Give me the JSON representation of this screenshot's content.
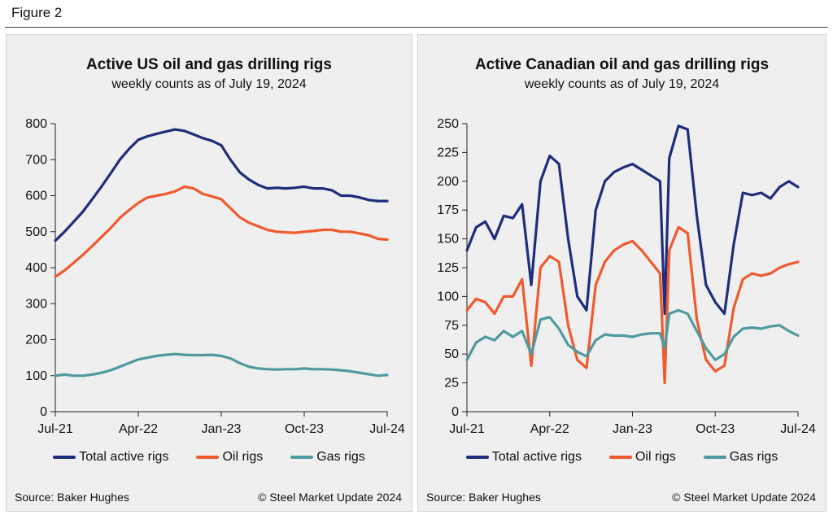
{
  "figure_title": "Figure 2",
  "colors": {
    "total": "#1f2d7a",
    "oil": "#ef5a2e",
    "gas": "#4f9aa0"
  },
  "chart_data": [
    {
      "type": "line",
      "title": "Active US oil and gas drilling rigs",
      "subtitle": "weekly counts as of July 19, 2024",
      "x_tick_labels": [
        "Jul-21",
        "Apr-22",
        "Jan-23",
        "Oct-23",
        "Jul-24"
      ],
      "y_ticks": [
        0,
        100,
        200,
        300,
        400,
        500,
        600,
        700,
        800
      ],
      "xlim": [
        0,
        36
      ],
      "ylim": [
        0,
        800
      ],
      "grid": false,
      "legend_position": "bottom",
      "series": [
        {
          "name": "Total active rigs",
          "color": "#1f2d7a",
          "points": [
            [
              0,
              475
            ],
            [
              1,
              500
            ],
            [
              2,
              528
            ],
            [
              3,
              556
            ],
            [
              4,
              590
            ],
            [
              5,
              625
            ],
            [
              6,
              662
            ],
            [
              7,
              700
            ],
            [
              8,
              730
            ],
            [
              9,
              755
            ],
            [
              10,
              765
            ],
            [
              11,
              772
            ],
            [
              12,
              778
            ],
            [
              13,
              784
            ],
            [
              14,
              780
            ],
            [
              15,
              770
            ],
            [
              16,
              760
            ],
            [
              17,
              752
            ],
            [
              18,
              740
            ],
            [
              19,
              700
            ],
            [
              20,
              665
            ],
            [
              21,
              645
            ],
            [
              22,
              630
            ],
            [
              23,
              620
            ],
            [
              24,
              622
            ],
            [
              25,
              620
            ],
            [
              26,
              622
            ],
            [
              27,
              625
            ],
            [
              28,
              620
            ],
            [
              29,
              620
            ],
            [
              30,
              615
            ],
            [
              31,
              600
            ],
            [
              32,
              600
            ],
            [
              33,
              595
            ],
            [
              34,
              588
            ],
            [
              35,
              585
            ],
            [
              36,
              585
            ]
          ]
        },
        {
          "name": "Oil rigs",
          "color": "#ef5a2e",
          "points": [
            [
              0,
              375
            ],
            [
              1,
              392
            ],
            [
              2,
              414
            ],
            [
              3,
              436
            ],
            [
              4,
              460
            ],
            [
              5,
              485
            ],
            [
              6,
              510
            ],
            [
              7,
              538
            ],
            [
              8,
              560
            ],
            [
              9,
              580
            ],
            [
              10,
              595
            ],
            [
              11,
              600
            ],
            [
              12,
              605
            ],
            [
              13,
              612
            ],
            [
              14,
              625
            ],
            [
              15,
              620
            ],
            [
              16,
              605
            ],
            [
              17,
              598
            ],
            [
              18,
              590
            ],
            [
              19,
              565
            ],
            [
              20,
              540
            ],
            [
              21,
              525
            ],
            [
              22,
              515
            ],
            [
              23,
              505
            ],
            [
              24,
              500
            ],
            [
              25,
              498
            ],
            [
              26,
              497
            ],
            [
              27,
              500
            ],
            [
              28,
              502
            ],
            [
              29,
              505
            ],
            [
              30,
              505
            ],
            [
              31,
              500
            ],
            [
              32,
              500
            ],
            [
              33,
              495
            ],
            [
              34,
              490
            ],
            [
              35,
              480
            ],
            [
              36,
              478
            ]
          ]
        },
        {
          "name": "Gas rigs",
          "color": "#4f9aa0",
          "points": [
            [
              0,
              100
            ],
            [
              1,
              103
            ],
            [
              2,
              100
            ],
            [
              3,
              100
            ],
            [
              4,
              103
            ],
            [
              5,
              108
            ],
            [
              6,
              115
            ],
            [
              7,
              125
            ],
            [
              8,
              135
            ],
            [
              9,
              145
            ],
            [
              10,
              150
            ],
            [
              11,
              155
            ],
            [
              12,
              158
            ],
            [
              13,
              160
            ],
            [
              14,
              158
            ],
            [
              15,
              157
            ],
            [
              16,
              157
            ],
            [
              17,
              158
            ],
            [
              18,
              155
            ],
            [
              19,
              148
            ],
            [
              20,
              135
            ],
            [
              21,
              125
            ],
            [
              22,
              120
            ],
            [
              23,
              118
            ],
            [
              24,
              117
            ],
            [
              25,
              118
            ],
            [
              26,
              118
            ],
            [
              27,
              120
            ],
            [
              28,
              118
            ],
            [
              29,
              118
            ],
            [
              30,
              117
            ],
            [
              31,
              115
            ],
            [
              32,
              112
            ],
            [
              33,
              108
            ],
            [
              34,
              104
            ],
            [
              35,
              100
            ],
            [
              36,
              102
            ]
          ]
        }
      ]
    },
    {
      "type": "line",
      "title": "Active Canadian oil and gas drilling rigs",
      "subtitle": "weekly counts as of July 19, 2024",
      "x_tick_labels": [
        "Jul-21",
        "Apr-22",
        "Jan-23",
        "Oct-23",
        "Jul-24"
      ],
      "y_ticks": [
        0,
        25,
        50,
        75,
        100,
        125,
        150,
        175,
        200,
        225,
        250
      ],
      "xlim": [
        0,
        36
      ],
      "ylim": [
        0,
        250
      ],
      "grid": false,
      "legend_position": "bottom",
      "series": [
        {
          "name": "Total active rigs",
          "color": "#1f2d7a",
          "points": [
            [
              0,
              140
            ],
            [
              1,
              160
            ],
            [
              2,
              165
            ],
            [
              3,
              150
            ],
            [
              4,
              170
            ],
            [
              5,
              168
            ],
            [
              6,
              180
            ],
            [
              7,
              110
            ],
            [
              8,
              200
            ],
            [
              9,
              222
            ],
            [
              10,
              215
            ],
            [
              11,
              150
            ],
            [
              12,
              100
            ],
            [
              13,
              88
            ],
            [
              14,
              175
            ],
            [
              15,
              200
            ],
            [
              16,
              208
            ],
            [
              17,
              212
            ],
            [
              18,
              215
            ],
            [
              19,
              210
            ],
            [
              20,
              205
            ],
            [
              21,
              200
            ],
            [
              21.5,
              85
            ],
            [
              22,
              220
            ],
            [
              23,
              248
            ],
            [
              24,
              245
            ],
            [
              25,
              170
            ],
            [
              26,
              110
            ],
            [
              27,
              95
            ],
            [
              28,
              85
            ],
            [
              29,
              145
            ],
            [
              30,
              190
            ],
            [
              31,
              188
            ],
            [
              32,
              190
            ],
            [
              33,
              185
            ],
            [
              34,
              195
            ],
            [
              35,
              200
            ],
            [
              36,
              195
            ]
          ]
        },
        {
          "name": "Oil rigs",
          "color": "#ef5a2e",
          "points": [
            [
              0,
              88
            ],
            [
              1,
              98
            ],
            [
              2,
              95
            ],
            [
              3,
              85
            ],
            [
              4,
              100
            ],
            [
              5,
              100
            ],
            [
              6,
              115
            ],
            [
              7,
              40
            ],
            [
              8,
              125
            ],
            [
              9,
              135
            ],
            [
              10,
              130
            ],
            [
              11,
              75
            ],
            [
              12,
              45
            ],
            [
              13,
              38
            ],
            [
              14,
              110
            ],
            [
              15,
              130
            ],
            [
              16,
              140
            ],
            [
              17,
              145
            ],
            [
              18,
              148
            ],
            [
              19,
              140
            ],
            [
              20,
              130
            ],
            [
              21,
              120
            ],
            [
              21.5,
              25
            ],
            [
              22,
              140
            ],
            [
              23,
              160
            ],
            [
              24,
              155
            ],
            [
              25,
              80
            ],
            [
              26,
              45
            ],
            [
              27,
              35
            ],
            [
              28,
              40
            ],
            [
              29,
              90
            ],
            [
              30,
              115
            ],
            [
              31,
              120
            ],
            [
              32,
              118
            ],
            [
              33,
              120
            ],
            [
              34,
              125
            ],
            [
              35,
              128
            ],
            [
              36,
              130
            ]
          ]
        },
        {
          "name": "Gas rigs",
          "color": "#4f9aa0",
          "points": [
            [
              0,
              45
            ],
            [
              1,
              60
            ],
            [
              2,
              65
            ],
            [
              3,
              62
            ],
            [
              4,
              70
            ],
            [
              5,
              65
            ],
            [
              6,
              70
            ],
            [
              7,
              50
            ],
            [
              8,
              80
            ],
            [
              9,
              82
            ],
            [
              10,
              72
            ],
            [
              11,
              58
            ],
            [
              12,
              52
            ],
            [
              13,
              48
            ],
            [
              14,
              62
            ],
            [
              15,
              67
            ],
            [
              16,
              66
            ],
            [
              17,
              66
            ],
            [
              18,
              65
            ],
            [
              19,
              67
            ],
            [
              20,
              68
            ],
            [
              21,
              68
            ],
            [
              21.5,
              55
            ],
            [
              22,
              85
            ],
            [
              23,
              88
            ],
            [
              24,
              85
            ],
            [
              25,
              70
            ],
            [
              26,
              55
            ],
            [
              27,
              45
            ],
            [
              28,
              50
            ],
            [
              29,
              65
            ],
            [
              30,
              72
            ],
            [
              31,
              73
            ],
            [
              32,
              72
            ],
            [
              33,
              74
            ],
            [
              34,
              75
            ],
            [
              35,
              70
            ],
            [
              36,
              66
            ]
          ]
        }
      ]
    }
  ],
  "panels": [
    {
      "source": "Source: Baker Hughes",
      "copyright": "© Steel Market Update 2024"
    },
    {
      "source": "Source: Baker Hughes",
      "copyright": "© Steel Market Update 2024"
    }
  ]
}
